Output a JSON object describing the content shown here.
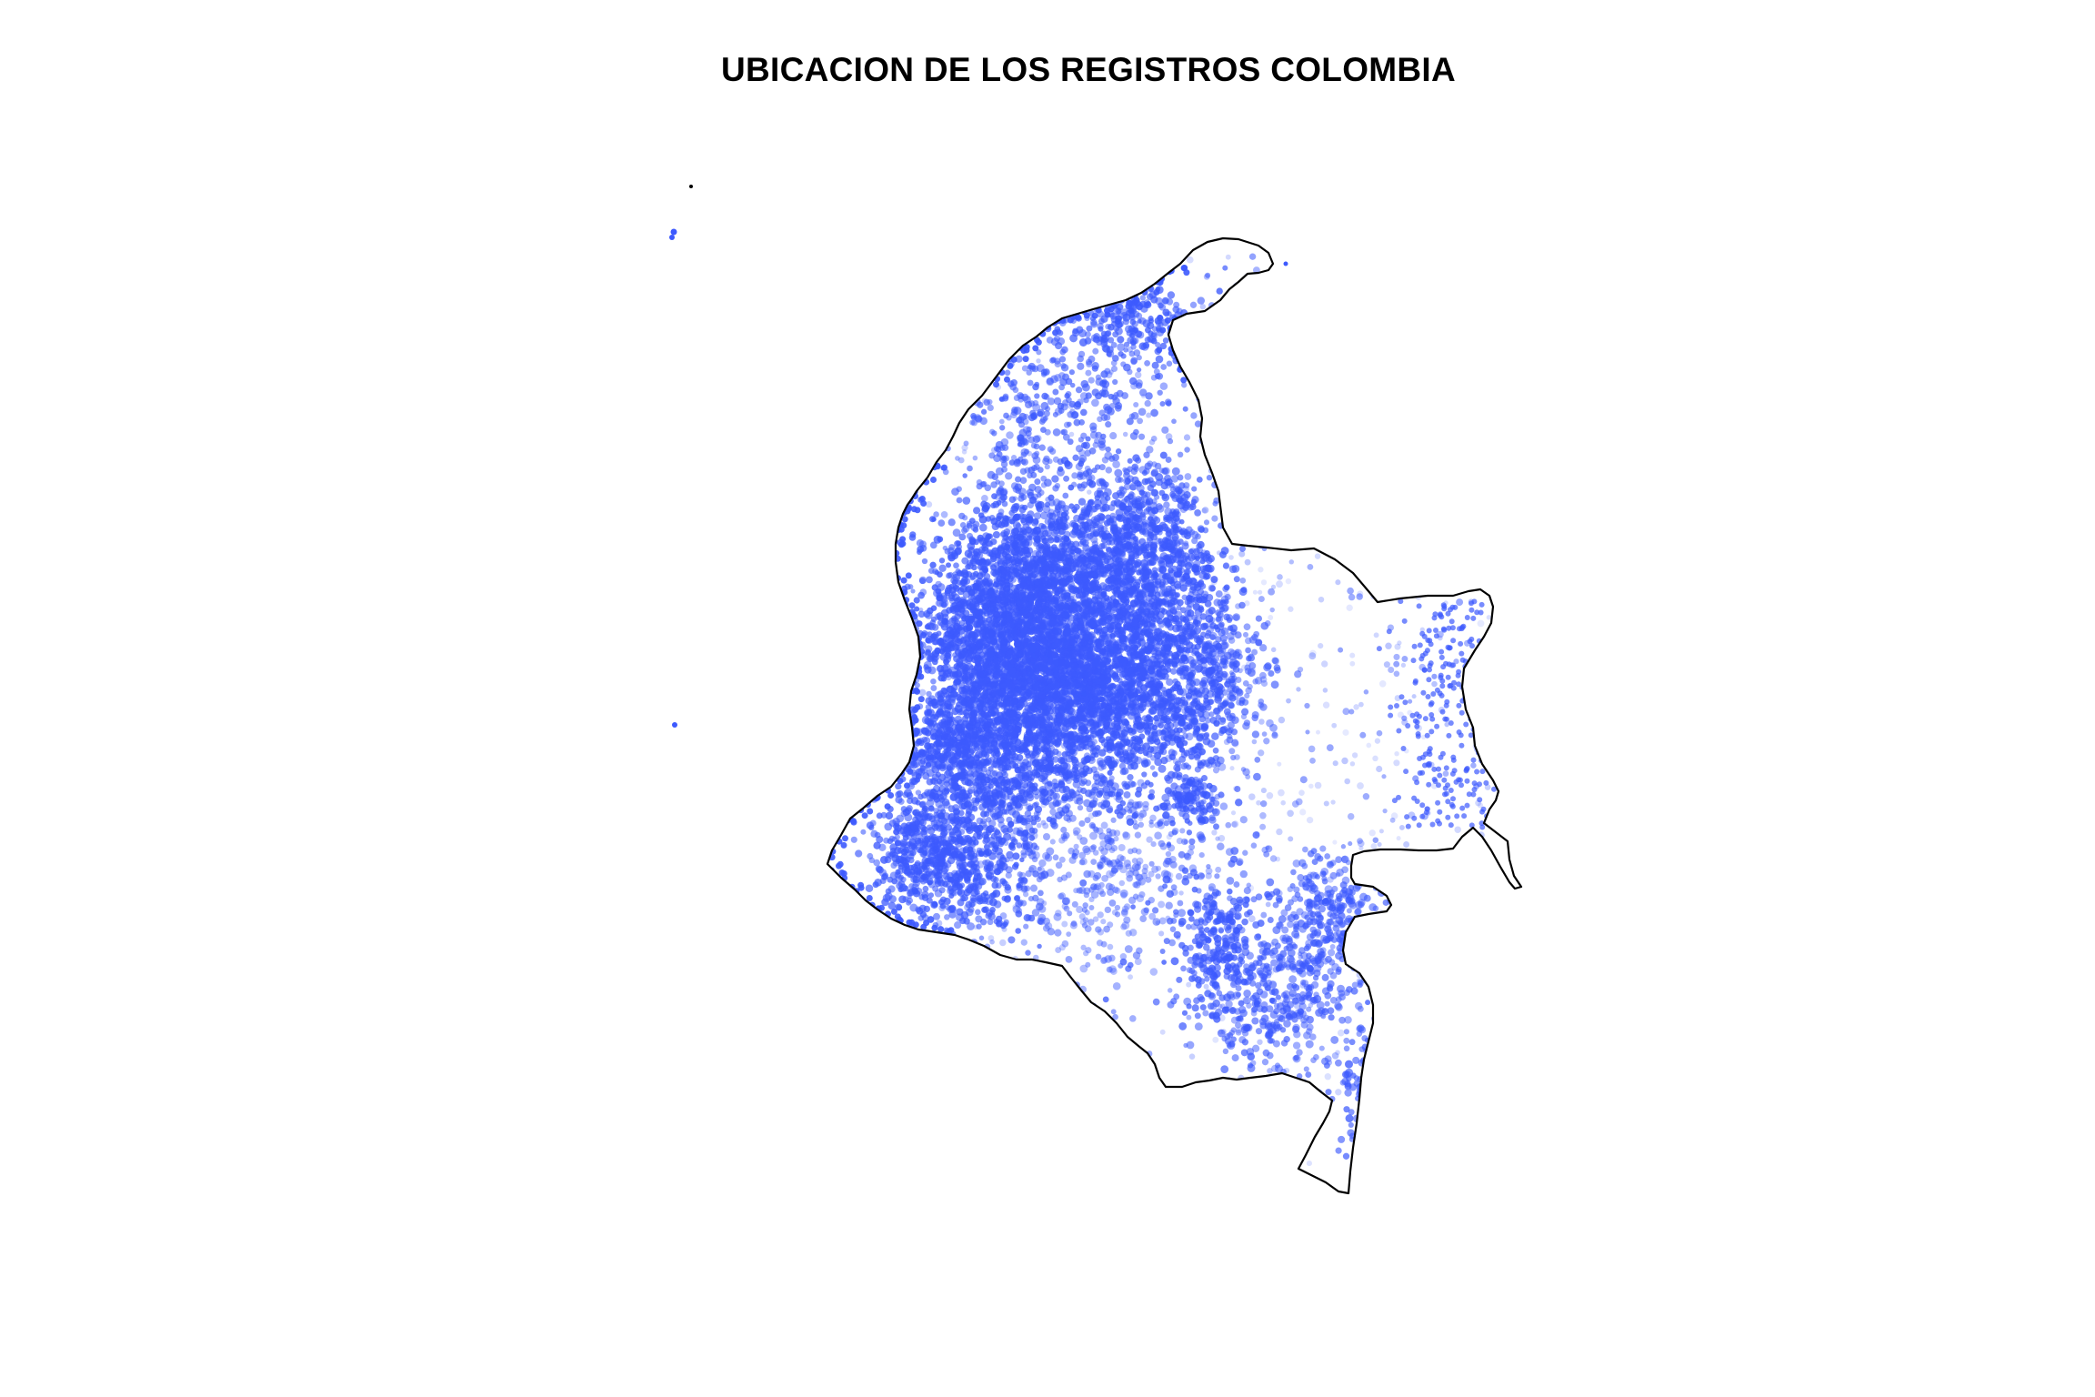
{
  "title": "UBICACION DE LOS REGISTROS COLOMBIA",
  "colors": {
    "point": "#3d5afe",
    "outline": "#000000",
    "background": "#ffffff"
  }
}
